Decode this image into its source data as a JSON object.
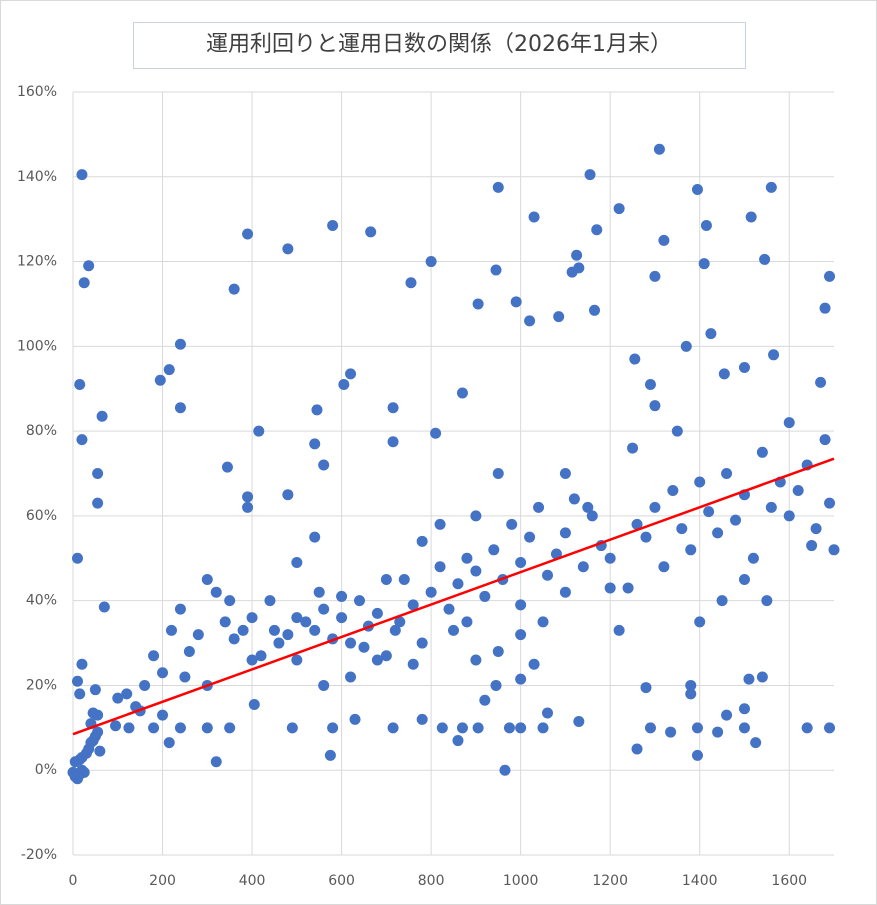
{
  "chart_data": {
    "type": "scatter",
    "title": "運用利回りと運用日数の関係（2026年1月末）",
    "xlim": [
      0,
      1700
    ],
    "ylim": [
      -20,
      160
    ],
    "xticks": [
      0,
      200,
      400,
      600,
      800,
      1000,
      1200,
      1400,
      1600
    ],
    "yticks": [
      {
        "value": -20,
        "label": "-20%"
      },
      {
        "value": 0,
        "label": "0%"
      },
      {
        "value": 20,
        "label": "20%"
      },
      {
        "value": 40,
        "label": "40%"
      },
      {
        "value": 60,
        "label": "60%"
      },
      {
        "value": 80,
        "label": "80%"
      },
      {
        "value": 100,
        "label": "100%"
      },
      {
        "value": 120,
        "label": "120%"
      },
      {
        "value": 140,
        "label": "140%"
      },
      {
        "value": 160,
        "label": "160%"
      }
    ],
    "grid": true,
    "series": [
      {
        "color": "#4472c4",
        "x": [
          20,
          35,
          25,
          15,
          20,
          55,
          55,
          65,
          10,
          240,
          215,
          195,
          240,
          390,
          360,
          345,
          415,
          390,
          390,
          480,
          580,
          665,
          545,
          540,
          620,
          605,
          560,
          715,
          715,
          755,
          800,
          810,
          870,
          905,
          950,
          945,
          990,
          1020,
          1030,
          1085,
          1115,
          1125,
          1130,
          1155,
          1170,
          1165,
          1220,
          1310,
          1320,
          1300,
          1395,
          1415,
          1410,
          1425,
          1515,
          1545,
          1560,
          1565,
          1680,
          1690,
          1670,
          1255,
          1290,
          1370,
          1455,
          1500,
          965,
          320,
          575,
          1395,
          1260,
          1525,
          1290,
          1335,
          1440,
          1500,
          1640,
          1690,
          1395,
          1460,
          1500,
          1540,
          1510,
          1380,
          1380,
          1280,
          1130,
          1050,
          1000,
          975,
          905,
          825,
          780,
          715,
          630,
          580,
          490,
          405,
          350,
          300,
          240,
          215,
          180,
          125,
          95,
          860,
          870,
          920,
          1000,
          1030,
          945,
          1060,
          0,
          5,
          10,
          15,
          20,
          25,
          5,
          15,
          20,
          30,
          35,
          40,
          45,
          50,
          55,
          60,
          40,
          45,
          55,
          50,
          20,
          10,
          15,
          70,
          100,
          120,
          140,
          160,
          180,
          200,
          220,
          240,
          260,
          280,
          300,
          320,
          340,
          360,
          380,
          400,
          420,
          440,
          460,
          480,
          500,
          520,
          540,
          560,
          580,
          600,
          620,
          640,
          660,
          680,
          700,
          720,
          740,
          760,
          780,
          800,
          820,
          840,
          860,
          880,
          900,
          920,
          940,
          960,
          980,
          1000,
          1020,
          1040,
          1060,
          1080,
          1100,
          1120,
          1140,
          1160,
          1180,
          1200,
          1220,
          1240,
          1260,
          1280,
          1300,
          1320,
          1340,
          1360,
          1380,
          1400,
          1420,
          1440,
          1460,
          1480,
          1500,
          1520,
          1540,
          1560,
          1580,
          1600,
          1620,
          1640,
          1660,
          1680,
          1690,
          850,
          880,
          900,
          950,
          1000,
          1050,
          1100,
          760,
          700,
          650,
          600,
          550,
          500,
          450,
          400,
          350,
          300,
          250,
          200,
          150,
          1250,
          1300,
          1350,
          1400,
          1450,
          1500,
          1550,
          1600,
          1650,
          1700,
          1100,
          1150,
          1200,
          1000,
          950,
          900,
          820,
          780,
          730,
          680,
          620,
          560,
          540,
          480,
          500
        ],
        "values": [
          140.5,
          119,
          115,
          91,
          78,
          70,
          63,
          83.5,
          50,
          100.5,
          94.5,
          92,
          85.5,
          126.5,
          113.5,
          71.5,
          80,
          64.5,
          62,
          123,
          128.5,
          127,
          85,
          77,
          93.5,
          91,
          72,
          85.5,
          77.5,
          115,
          120,
          79.5,
          89,
          110,
          137.5,
          118,
          110.5,
          106,
          130.5,
          107,
          117.5,
          121.5,
          118.5,
          140.5,
          127.5,
          108.5,
          132.5,
          146.5,
          125,
          116.5,
          137,
          128.5,
          119.5,
          103,
          130.5,
          120.5,
          137.5,
          98,
          109,
          116.5,
          91.5,
          97,
          91,
          100,
          93.5,
          95,
          0,
          2,
          3.5,
          3.5,
          5,
          6.5,
          10,
          9,
          9,
          10,
          10,
          10,
          10,
          13,
          14.5,
          22,
          21.5,
          20,
          18,
          19.5,
          11.5,
          10,
          10,
          10,
          10,
          10,
          12,
          10,
          12,
          10,
          10,
          15.5,
          10,
          10,
          10,
          6.5,
          10,
          10,
          10.5,
          7,
          10,
          16.5,
          21.5,
          25,
          20,
          13.5,
          -0.5,
          -1.5,
          -2,
          -1,
          0,
          -0.5,
          2,
          2.5,
          3,
          4,
          5,
          6.5,
          7,
          8,
          9,
          4.5,
          11,
          13.5,
          13,
          19,
          25,
          21,
          18,
          38.5,
          17,
          18,
          15,
          20,
          27,
          23,
          33,
          38,
          28,
          32,
          45,
          42,
          35,
          31,
          33,
          36,
          27,
          40,
          30,
          32,
          26,
          35,
          33,
          38,
          31,
          36,
          30,
          40,
          34,
          37,
          27,
          33,
          45,
          39,
          30,
          42,
          48,
          38,
          44,
          50,
          47,
          41,
          52,
          45,
          58,
          49,
          55,
          62,
          46,
          51,
          56,
          64,
          48,
          60,
          53,
          50,
          33,
          43,
          58,
          55,
          62,
          48,
          66,
          57,
          52,
          68,
          61,
          56,
          70,
          59,
          65,
          50,
          75,
          62,
          68,
          60,
          66,
          72,
          57,
          78,
          63,
          33,
          35,
          60,
          28,
          39,
          35,
          42,
          25,
          45,
          29,
          41,
          42,
          36,
          33,
          26,
          40,
          20,
          22,
          13,
          14,
          76,
          86,
          80,
          35,
          40,
          45,
          40,
          82,
          53,
          52,
          70,
          62,
          43,
          32,
          70,
          26,
          58,
          54,
          35,
          26,
          22,
          20,
          55,
          65,
          49
        ]
      }
    ],
    "trendline": {
      "color": "#ff0000",
      "x": [
        0,
        1700
      ],
      "values": [
        8.5,
        73.5
      ]
    }
  }
}
